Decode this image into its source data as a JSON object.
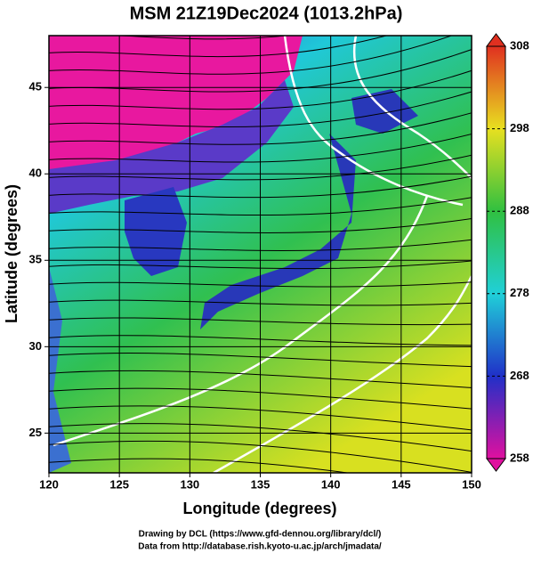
{
  "chart_data": {
    "type": "map",
    "title": "MSM 21Z19Dec2024 (1013.2hPa)",
    "xlabel": "Longitude (degrees)",
    "ylabel": "Latitude  (degrees)",
    "xlim": [
      120,
      150
    ],
    "ylim": [
      22.7,
      48
    ],
    "xticks": [
      120,
      125,
      130,
      135,
      140,
      145,
      150
    ],
    "yticks": [
      25,
      30,
      35,
      40,
      45
    ],
    "grid": true,
    "colorbar": {
      "lim": [
        258,
        308
      ],
      "ticks": [
        258,
        268,
        278,
        288,
        298,
        308
      ],
      "colors": [
        "#e0109f",
        "#2030c8",
        "#20d0d8",
        "#30c040",
        "#e8e020",
        "#e03020"
      ]
    },
    "footer": [
      "Drawing by DCL (https://www.gfd-dennou.org/library/dcl/)",
      "Data from http://database.rish.kyoto-u.ac.jp/arch/jmadata/"
    ]
  }
}
